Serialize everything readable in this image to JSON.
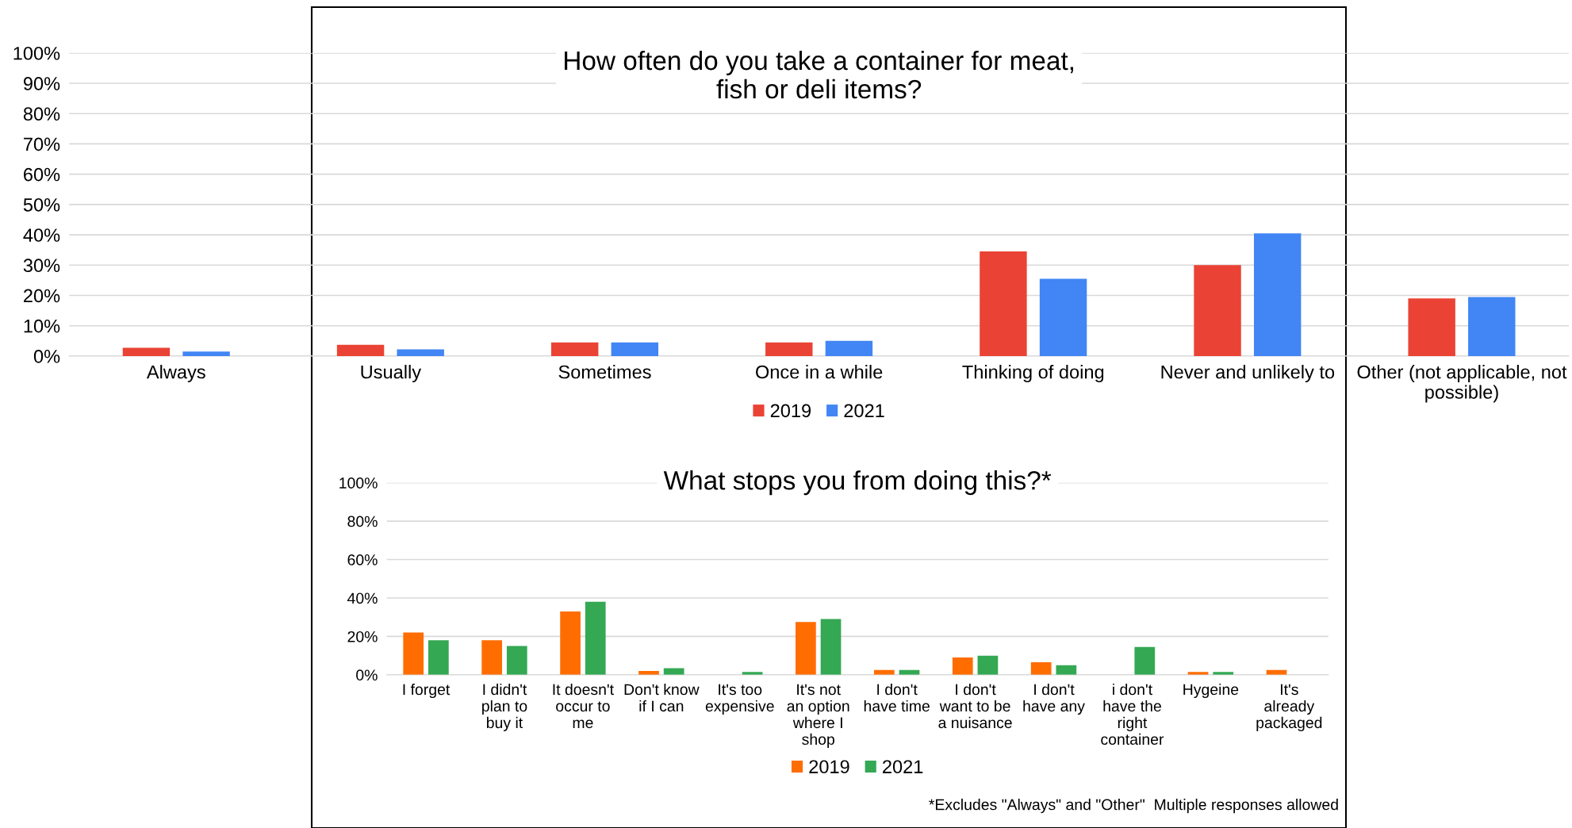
{
  "chart_data": [
    {
      "type": "bar",
      "title": "How often do you take a container for meat, fish or deli items?",
      "categories": [
        "Always",
        "Usually",
        "Sometimes",
        "Once in a while",
        "Thinking of doing",
        "Never and unlikely to",
        "Other (not applicable, not possible)"
      ],
      "series": [
        {
          "name": "2019",
          "color": "#ea4335",
          "values": [
            2.7,
            3.7,
            4.5,
            4.5,
            34.5,
            30,
            19
          ]
        },
        {
          "name": "2021",
          "color": "#4285f4",
          "values": [
            1.5,
            2.2,
            4.5,
            5,
            25.5,
            40.5,
            19.5
          ]
        }
      ],
      "ylim": [
        0,
        100
      ],
      "yticks": [
        {
          "value": 0,
          "label": "0%"
        },
        {
          "value": 10,
          "label": "10%"
        },
        {
          "value": 20,
          "label": "20%"
        },
        {
          "value": 30,
          "label": "30%"
        },
        {
          "value": 40,
          "label": "40%"
        },
        {
          "value": 50,
          "label": "50%"
        },
        {
          "value": 60,
          "label": "60%"
        },
        {
          "value": 70,
          "label": "70%"
        },
        {
          "value": 80,
          "label": "80%"
        },
        {
          "value": 90,
          "label": "90%"
        },
        {
          "value": 100,
          "label": "100%"
        }
      ],
      "grid": "y",
      "legend": "bottom"
    },
    {
      "type": "bar",
      "title": "What stops you from doing this?*",
      "categories": [
        "I forget",
        "I didn't plan to buy it",
        "It doesn't occur to me",
        "Don't know if I can",
        "It's too expensive",
        "It's not an option where I shop",
        "I don't have time",
        "I don't want to be a nuisance",
        "I don't have any",
        "i don't have the right container",
        "Hygeine",
        "It's already packaged"
      ],
      "series": [
        {
          "name": "2019",
          "color": "#ff6d01",
          "values": [
            22,
            18,
            33,
            2,
            null,
            27.5,
            2.5,
            9,
            6.5,
            null,
            1.5,
            2.5
          ]
        },
        {
          "name": "2021",
          "color": "#34a853",
          "values": [
            18,
            15,
            38,
            3.5,
            1.5,
            29,
            2.5,
            10,
            5,
            14.5,
            1.5,
            null
          ]
        }
      ],
      "ylim": [
        0,
        100
      ],
      "yticks": [
        {
          "value": 0,
          "label": "0%"
        },
        {
          "value": 20,
          "label": "20%"
        },
        {
          "value": 40,
          "label": "40%"
        },
        {
          "value": 60,
          "label": "60%"
        },
        {
          "value": 80,
          "label": "80%"
        },
        {
          "value": 100,
          "label": "100%"
        }
      ],
      "grid": "y",
      "legend": "bottom",
      "annotations": [
        "*Excludes \"Always\" and \"Other\"  Multiple responses allowed"
      ]
    }
  ]
}
